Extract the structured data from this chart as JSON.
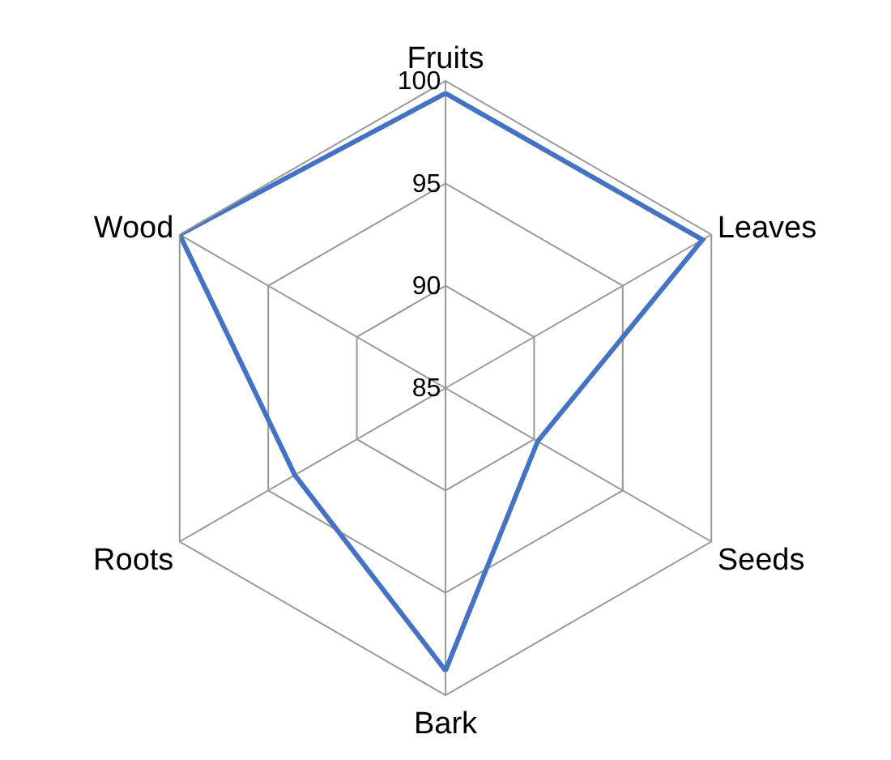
{
  "chart_data": {
    "type": "radar",
    "categories": [
      "Fruits",
      "Leaves",
      "Seeds",
      "Bark",
      "Roots",
      "Wood"
    ],
    "series": [
      {
        "color": "#4472c4",
        "values": [
          99.4,
          99.5,
          90.2,
          98.8,
          93.5,
          100
        ]
      }
    ],
    "ylim": [
      85,
      100
    ],
    "yticks": [
      85,
      90,
      95,
      100
    ],
    "grid": true,
    "marker": "none",
    "line_style": "solid"
  }
}
